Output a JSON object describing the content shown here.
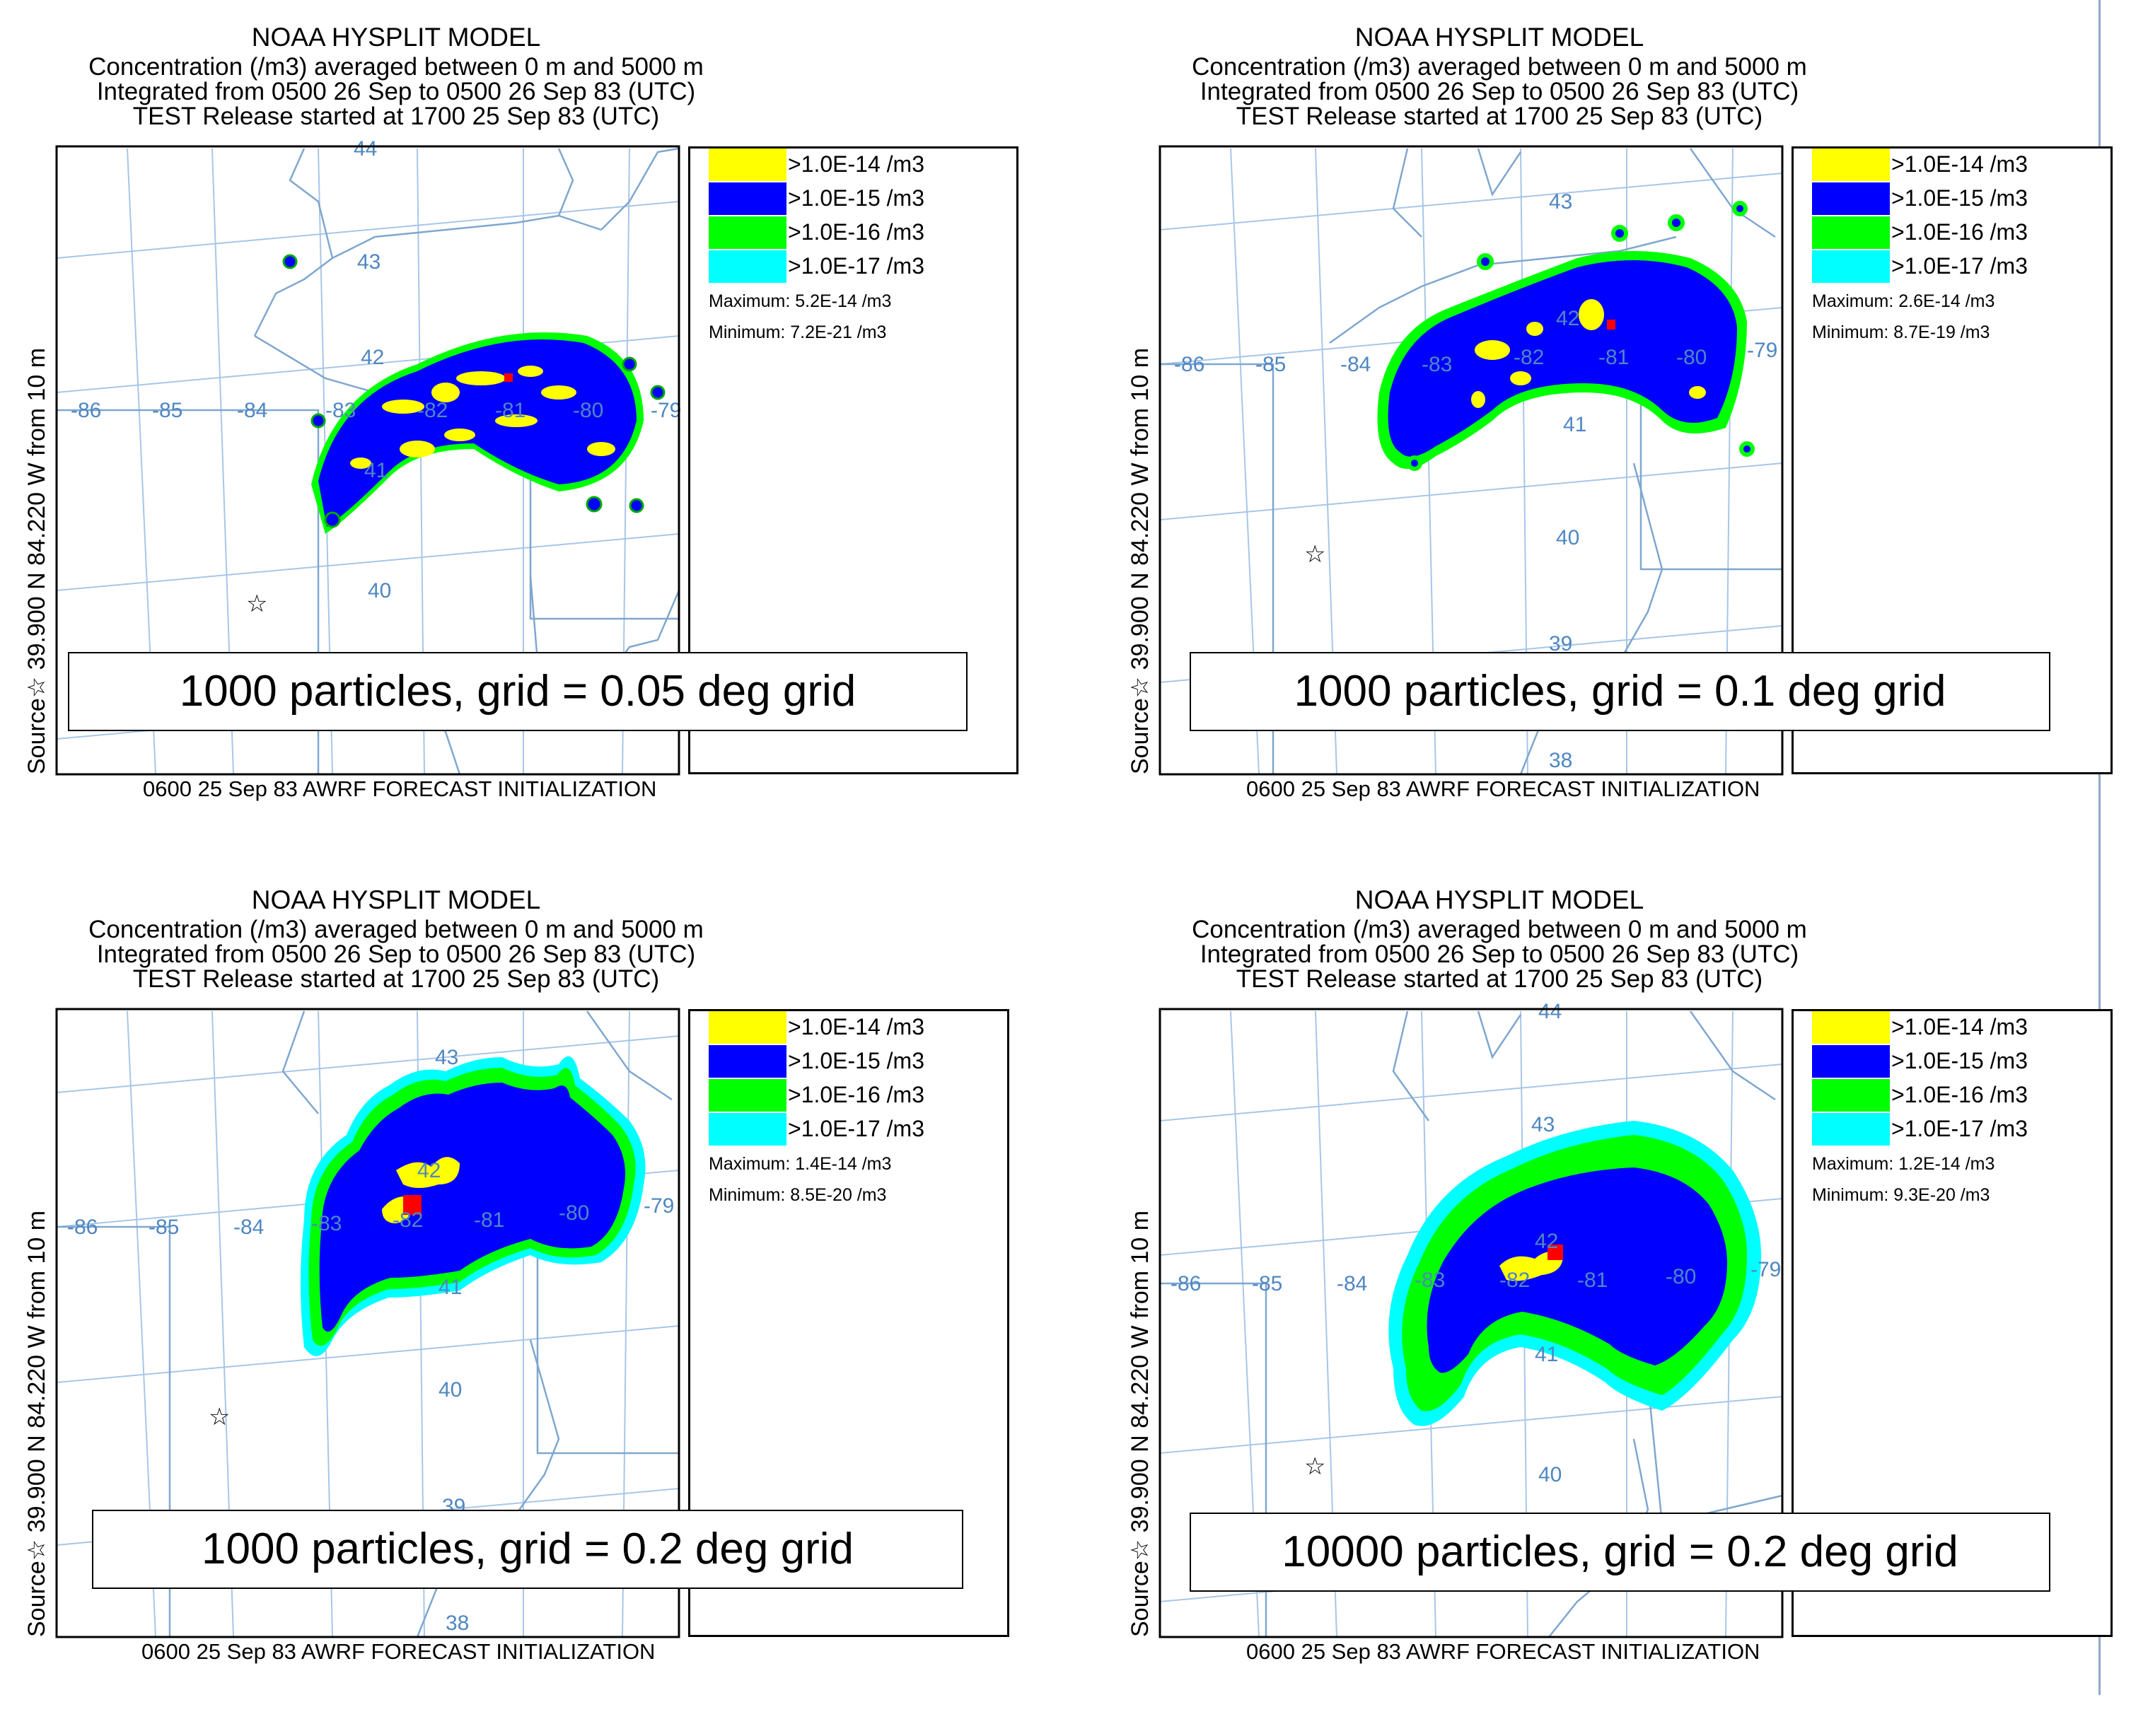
{
  "panels": [
    {
      "title": "NOAA HYSPLIT MODEL",
      "line1": "Concentration  (/m3) averaged between     0 m and  5000 m",
      "line2": "Integrated from 0500 26 Sep to 0500 26 Sep 83 (UTC)",
      "line3": "TEST Release started at 1700 25 Sep 83 (UTC)",
      "side_label": "Source☆ 39.900  N  84.220  W       from       10 m",
      "legend": [
        ">1.0E-14 /m3",
        ">1.0E-15 /m3",
        ">1.0E-16 /m3",
        ">1.0E-17 /m3"
      ],
      "maximum": "Maximum: 5.2E-14 /m3",
      "minimum": "Minimum: 7.2E-21 /m3",
      "footer": "0600 25 Sep 83 AWRF FORECAST INITIALIZATION",
      "caption": "1000 particles, grid = 0.05 deg grid",
      "lon_labels": [
        "-86",
        "-85",
        "-84",
        "-83",
        "-82",
        "-81",
        "-80",
        "-79"
      ],
      "lat_labels": [
        "44",
        "43",
        "42",
        "41",
        "40"
      ]
    },
    {
      "title": "NOAA HYSPLIT MODEL",
      "line1": "Concentration  (/m3) averaged between     0 m and  5000 m",
      "line2": "Integrated from 0500 26 Sep to 0500 26 Sep 83 (UTC)",
      "line3": "TEST Release started at 1700 25 Sep 83 (UTC)",
      "side_label": "Source☆ 39.900  N  84.220  W       from       10 m",
      "legend": [
        ">1.0E-14 /m3",
        ">1.0E-15 /m3",
        ">1.0E-16 /m3",
        ">1.0E-17 /m3"
      ],
      "maximum": "Maximum: 2.6E-14 /m3",
      "minimum": "Minimum: 8.7E-19 /m3",
      "footer": "0600 25 Sep 83 AWRF FORECAST INITIALIZATION",
      "caption": "1000 particles, grid = 0.1 deg grid",
      "lon_labels": [
        "-86",
        "-85",
        "-84",
        "-83",
        "-82",
        "-81",
        "-80",
        "-79"
      ],
      "lat_labels": [
        "43",
        "42",
        "41",
        "40",
        "39",
        "38"
      ]
    },
    {
      "title": "NOAA HYSPLIT MODEL",
      "line1": "Concentration  (/m3) averaged between     0 m and  5000 m",
      "line2": "Integrated from 0500 26 Sep to 0500 26 Sep 83 (UTC)",
      "line3": "TEST Release started at 1700 25 Sep 83 (UTC)",
      "side_label": "Source☆ 39.900  N  84.220  W       from       10 m",
      "legend": [
        ">1.0E-14 /m3",
        ">1.0E-15 /m3",
        ">1.0E-16 /m3",
        ">1.0E-17 /m3"
      ],
      "maximum": "Maximum: 1.4E-14 /m3",
      "minimum": "Minimum: 8.5E-20 /m3",
      "footer": "0600 25 Sep 83 AWRF FORECAST INITIALIZATION",
      "caption": "1000 particles, grid = 0.2 deg grid",
      "lon_labels": [
        "-86",
        "-85",
        "-84",
        "-83",
        "-82",
        "-81",
        "-80",
        "-79"
      ],
      "lat_labels": [
        "43",
        "42",
        "41",
        "40",
        "39",
        "38"
      ]
    },
    {
      "title": "NOAA HYSPLIT MODEL",
      "line1": "Concentration  (/m3) averaged between     0 m and  5000 m",
      "line2": "Integrated from 0500 26 Sep to 0500 26 Sep 83 (UTC)",
      "line3": "TEST Release started at 1700 25 Sep 83 (UTC)",
      "side_label": "Source☆ 39.900  N  84.220  W       from       10 m",
      "legend": [
        ">1.0E-14 /m3",
        ">1.0E-15 /m3",
        ">1.0E-16 /m3",
        ">1.0E-17 /m3"
      ],
      "maximum": "Maximum: 1.2E-14 /m3",
      "minimum": "Minimum: 9.3E-20 /m3",
      "footer": "0600 25 Sep 83 AWRF FORECAST INITIALIZATION",
      "caption": "10000 particles, grid = 0.2 deg grid",
      "lon_labels": [
        "-86",
        "-85",
        "-84",
        "-83",
        "-82",
        "-81",
        "-80",
        "-79"
      ],
      "lat_labels": [
        "44",
        "43",
        "42",
        "41",
        "40"
      ]
    }
  ],
  "colors": {
    "level1": "#ffff00",
    "level2": "#0000ff",
    "level3": "#00ff00",
    "level4": "#00ffff",
    "release_cell": "#ff0000",
    "map_lines": "#7fa7cf",
    "grid_lines": "#a8c6e8",
    "label_blue": "#4f87c2"
  }
}
